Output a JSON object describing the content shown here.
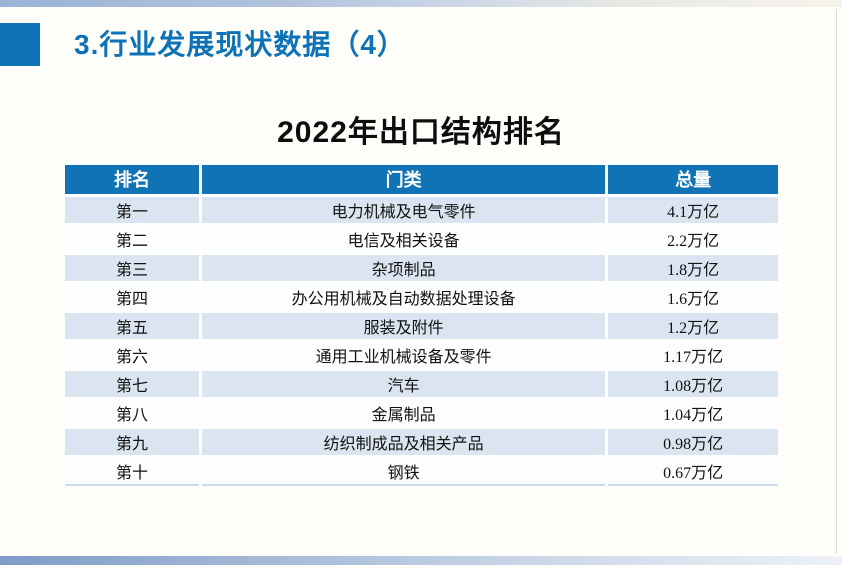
{
  "slide": {
    "header": {
      "title": "3.行业发展现状数据（4）"
    },
    "table_title": "2022年出口结构排名",
    "table": {
      "columns": [
        "排名",
        "门类",
        "总量"
      ],
      "rows": [
        {
          "rank": "第一",
          "category": "电力机械及电气零件",
          "total": "4.1万亿"
        },
        {
          "rank": "第二",
          "category": "电信及相关设备",
          "total": "2.2万亿"
        },
        {
          "rank": "第三",
          "category": "杂项制品",
          "total": "1.8万亿"
        },
        {
          "rank": "第四",
          "category": "办公用机械及自动数据处理设备",
          "total": "1.6万亿"
        },
        {
          "rank": "第五",
          "category": "服装及附件",
          "total": "1.2万亿"
        },
        {
          "rank": "第六",
          "category": "通用工业机械设备及零件",
          "total": "1.17万亿"
        },
        {
          "rank": "第七",
          "category": "汽车",
          "total": "1.08万亿"
        },
        {
          "rank": "第八",
          "category": "金属制品",
          "total": "1.04万亿"
        },
        {
          "rank": "第九",
          "category": "纺织制成品及相关产品",
          "total": "0.98万亿"
        },
        {
          "rank": "第十",
          "category": "钢铁",
          "total": "0.67万亿"
        }
      ]
    },
    "colors": {
      "accent_blue": "#0e73b6",
      "table_header_bg": "#0f73b5",
      "row_band_bg": "#dbe5f1",
      "row_plain_bg": "#fcfdfe",
      "bar_gradient_left": "#7f9cc7",
      "bar_gradient_right": "#edf1f7"
    }
  }
}
